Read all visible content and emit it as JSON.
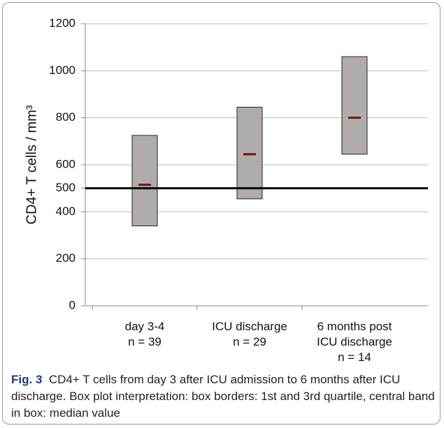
{
  "chart_data": {
    "type": "box",
    "ylabel": "CD4+ T cells / mm³",
    "categories": [
      "day 3-4",
      "ICU discharge",
      "6 months post ICU discharge"
    ],
    "n_labels": [
      "n = 39",
      "n = 29",
      "n = 14"
    ],
    "q1": [
      340,
      455,
      645
    ],
    "median": [
      515,
      645,
      800
    ],
    "q3": [
      725,
      845,
      1060
    ],
    "box_color": "#b1acac",
    "median_color": "#6e1111",
    "reference_line": 500,
    "ylim": [
      0,
      1200
    ],
    "yticks": [
      0,
      200,
      400,
      500,
      600,
      800,
      1000,
      1200
    ],
    "grid": true
  },
  "caption": {
    "label": "Fig. 3",
    "text": "CD4+ T cells from day 3 after ICU admission to 6 months after ICU discharge. Box plot interpretation: box borders: 1st and 3rd quartile, central band in box: median value"
  }
}
